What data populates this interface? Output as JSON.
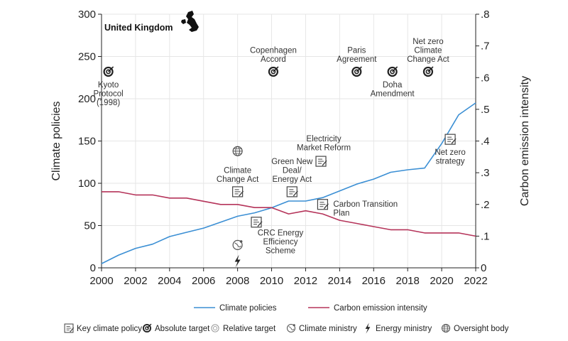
{
  "country": "United Kingdom",
  "chart_data": {
    "type": "line",
    "x": [
      2000,
      2001,
      2002,
      2003,
      2004,
      2005,
      2006,
      2007,
      2008,
      2009,
      2010,
      2011,
      2012,
      2013,
      2014,
      2015,
      2016,
      2017,
      2018,
      2019,
      2020,
      2021,
      2022
    ],
    "series": [
      {
        "name": "Climate policies",
        "axis": "left",
        "color": "#3b8fd4",
        "values": [
          5,
          15,
          23,
          28,
          37,
          42,
          47,
          54,
          61,
          65,
          71,
          79,
          79,
          83,
          91,
          99,
          105,
          113,
          116,
          118,
          147,
          181,
          195
        ]
      },
      {
        "name": "Carbon emission intensity",
        "axis": "right",
        "color": "#b5345a",
        "values": [
          0.24,
          0.24,
          0.23,
          0.23,
          0.22,
          0.22,
          0.21,
          0.2,
          0.2,
          0.19,
          0.19,
          0.17,
          0.18,
          0.17,
          0.15,
          0.14,
          0.13,
          0.12,
          0.12,
          0.11,
          0.11,
          0.11,
          0.1
        ]
      }
    ],
    "xlim": [
      2000,
      2022
    ],
    "xticks": [
      "2000",
      "2002",
      "2004",
      "2006",
      "2008",
      "2010",
      "2012",
      "2014",
      "2016",
      "2018",
      "2020",
      "2022"
    ],
    "ylabel_left": "Climate policies",
    "ylim_left": [
      0,
      300
    ],
    "yticks_left": [
      "0",
      "50",
      "100",
      "150",
      "200",
      "250",
      "300"
    ],
    "ylabel_right": "Carbon emission intensity",
    "ylim_right": [
      0,
      0.8
    ],
    "yticks_right": [
      "0",
      ".1",
      ".2",
      ".3",
      ".4",
      ".5",
      ".6",
      ".7",
      ".8"
    ],
    "grid": true,
    "legend_position": "bottom",
    "annotations": [
      {
        "id": "kyoto",
        "icon": "absolute-target",
        "x": 2000.4,
        "y": 232,
        "lines": [
          "Kyoto",
          "Protocol",
          "(1998)"
        ],
        "text_pos": "below"
      },
      {
        "id": "copenhagen",
        "icon": "absolute-target",
        "x": 2010.1,
        "y": 232,
        "lines": [
          "Copenhagen",
          "Accord"
        ],
        "text_pos": "above"
      },
      {
        "id": "paris",
        "icon": "absolute-target",
        "x": 2015.0,
        "y": 232,
        "lines": [
          "Paris",
          "Agreement"
        ],
        "text_pos": "above"
      },
      {
        "id": "doha",
        "icon": "absolute-target",
        "x": 2017.1,
        "y": 232,
        "lines": [
          "Doha",
          "Amendment"
        ],
        "text_pos": "below"
      },
      {
        "id": "netzero-act",
        "icon": "absolute-target",
        "x": 2019.2,
        "y": 232,
        "lines": [
          "Net zero",
          "Climate",
          "Change Act"
        ],
        "text_pos": "above"
      },
      {
        "id": "oversight",
        "icon": "oversight-body",
        "x": 2008.0,
        "y": 138,
        "lines": [],
        "text_pos": "none"
      },
      {
        "id": "cca",
        "icon": "key-climate-policy",
        "x": 2008.0,
        "y": 90,
        "lines": [
          "Climate",
          "Change Act"
        ],
        "text_pos": "above"
      },
      {
        "id": "crc",
        "icon": "key-climate-policy",
        "x": 2009.1,
        "y": 54,
        "lines": [
          "CRC Energy",
          "Efficiency",
          "Scheme"
        ],
        "text_pos": "below-right"
      },
      {
        "id": "climate-ministry",
        "icon": "climate-ministry",
        "x": 2008.0,
        "y": 27,
        "lines": [],
        "text_pos": "none"
      },
      {
        "id": "energy-ministry",
        "icon": "energy-ministry",
        "x": 2008.0,
        "y": 8,
        "lines": [],
        "text_pos": "none"
      },
      {
        "id": "greennewdeal",
        "icon": "key-climate-policy",
        "x": 2011.2,
        "y": 90,
        "lines": [
          "Green New",
          "Deal/",
          "Energy Act"
        ],
        "text_pos": "above"
      },
      {
        "id": "electricity",
        "icon": "key-climate-policy",
        "x": 2012.9,
        "y": 126,
        "lines": [
          "Electricity",
          "Market Reform"
        ],
        "text_pos": "above-right"
      },
      {
        "id": "ctp",
        "icon": "key-climate-policy",
        "x": 2013.0,
        "y": 75,
        "lines": [
          "Carbon Transition",
          "Plan"
        ],
        "text_pos": "right"
      },
      {
        "id": "netzero-strategy",
        "icon": "key-climate-policy",
        "x": 2020.5,
        "y": 152,
        "lines": [
          "Net zero",
          "strategy"
        ],
        "text_pos": "below"
      }
    ],
    "legend_lines": [
      {
        "label": "Climate policies",
        "color": "#3b8fd4"
      },
      {
        "label": "Carbon emission intensity",
        "color": "#b5345a"
      }
    ],
    "legend_icons": [
      {
        "icon": "key-climate-policy",
        "label": "Key climate policy"
      },
      {
        "icon": "absolute-target",
        "label": "Absolute target"
      },
      {
        "icon": "relative-target",
        "label": "Relative target"
      },
      {
        "icon": "climate-ministry",
        "label": "Climate ministry"
      },
      {
        "icon": "energy-ministry",
        "label": "Energy ministry"
      },
      {
        "icon": "oversight-body",
        "label": "Oversight body"
      }
    ]
  }
}
